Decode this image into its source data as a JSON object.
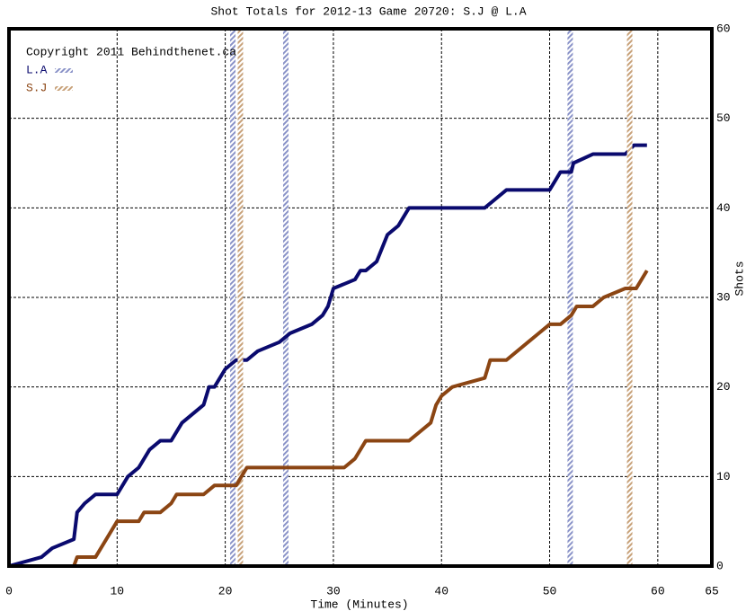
{
  "chart_data": {
    "type": "line",
    "title": "Shot Totals for 2012-13 Game 20720: S.J @ L.A",
    "annotation": "Copyright 2011 Behindthenet.ca",
    "x_label": "Time (Minutes)",
    "y_label": "Shots",
    "xlim": [
      0,
      65
    ],
    "xticks": [
      0,
      10,
      20,
      30,
      40,
      50,
      60,
      65
    ],
    "ylim": [
      0,
      60
    ],
    "yticks": [
      0,
      10,
      20,
      30,
      40,
      50,
      60
    ],
    "grid": true,
    "series": [
      {
        "name": "L.A",
        "color": "#0a0a6e",
        "hatch_color": "#8a93c8",
        "x": [
          0,
          3,
          4,
          6,
          6.3,
          7,
          8,
          10,
          11,
          12,
          13,
          14,
          15,
          16,
          18,
          18.5,
          19,
          20,
          21,
          22,
          23,
          25,
          26,
          28,
          29,
          29.5,
          30,
          32,
          32.5,
          33,
          34,
          35,
          36,
          37,
          38,
          44,
          45,
          46,
          50,
          51,
          52,
          52.2,
          54,
          57,
          57.8,
          59
        ],
        "values": [
          0,
          1,
          2,
          3,
          6,
          7,
          8,
          8,
          10,
          11,
          13,
          14,
          14,
          16,
          18,
          20,
          20,
          22,
          23,
          23,
          24,
          25,
          26,
          27,
          28,
          29,
          31,
          32,
          33,
          33,
          34,
          37,
          38,
          40,
          40,
          40,
          41,
          42,
          42,
          44,
          44,
          45,
          46,
          46,
          47,
          47
        ],
        "goals": [
          20.7,
          25.6,
          51.9
        ]
      },
      {
        "name": "S.J",
        "color": "#8b4513",
        "hatch_color": "#c8a27a",
        "x": [
          0,
          6,
          6.3,
          8,
          9,
          10,
          12,
          12.5,
          14,
          15,
          15.5,
          18,
          19,
          21,
          22,
          31,
          32,
          33,
          37,
          38,
          39,
          39.5,
          40,
          41,
          44,
          44.5,
          46,
          48,
          49,
          50,
          51,
          52,
          52.5,
          54,
          55,
          57,
          58,
          59
        ],
        "values": [
          0,
          0,
          1,
          1,
          3,
          5,
          5,
          6,
          6,
          7,
          8,
          8,
          9,
          9,
          11,
          11,
          12,
          14,
          14,
          15,
          16,
          18,
          19,
          20,
          21,
          23,
          23,
          25,
          26,
          27,
          27,
          28,
          29,
          29,
          30,
          31,
          31,
          33
        ],
        "goals": [
          21.4,
          57.4
        ]
      }
    ]
  }
}
